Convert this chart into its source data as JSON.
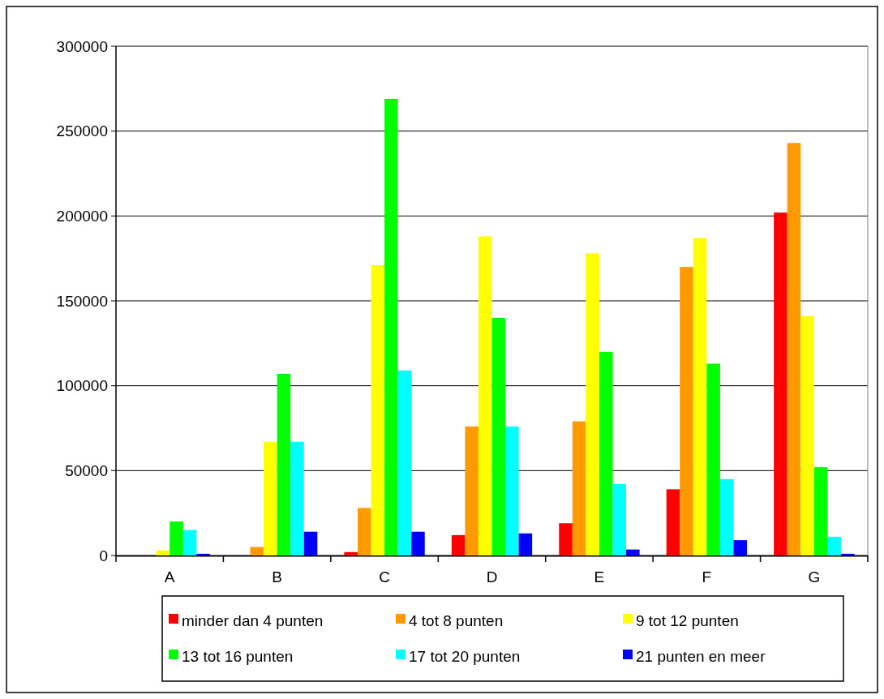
{
  "chart_data": {
    "type": "bar",
    "categories": [
      "A",
      "B",
      "C",
      "D",
      "E",
      "F",
      "G"
    ],
    "series": [
      {
        "name": "minder dan 4 punten",
        "color": "#ff0000",
        "values": [
          0,
          0,
          2000,
          12000,
          19000,
          39000,
          202000
        ]
      },
      {
        "name": "4 tot 8 punten",
        "color": "#ff9900",
        "values": [
          0,
          5000,
          28000,
          76000,
          79000,
          170000,
          243000
        ]
      },
      {
        "name": "9 tot 12 punten",
        "color": "#ffff00",
        "values": [
          3000,
          67000,
          171000,
          188000,
          178000,
          187000,
          141000
        ]
      },
      {
        "name": "13 tot 16 punten",
        "color": "#00ff00",
        "values": [
          20000,
          107000,
          269000,
          140000,
          120000,
          113000,
          52000
        ]
      },
      {
        "name": "17 tot 20 punten",
        "color": "#00ffff",
        "values": [
          15000,
          67000,
          109000,
          76000,
          42000,
          45000,
          11000
        ]
      },
      {
        "name": "21 punten en meer",
        "color": "#0000ff",
        "values": [
          1000,
          14000,
          14000,
          13000,
          3500,
          9000,
          1000
        ]
      }
    ],
    "ylim": [
      0,
      300000
    ],
    "yticks": [
      0,
      50000,
      100000,
      150000,
      200000,
      250000,
      300000
    ],
    "grid": "y",
    "legend": "bottom"
  }
}
